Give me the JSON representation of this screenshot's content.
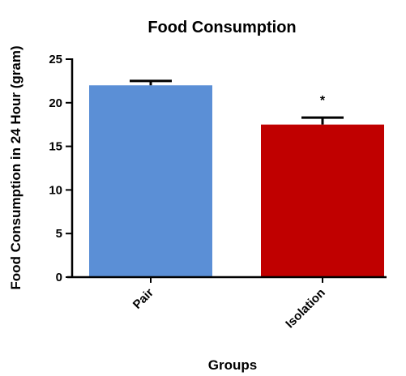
{
  "chart_data": {
    "type": "bar",
    "title": "Food Consumption",
    "xlabel": "Groups",
    "ylabel": "Food Consumption in 24 Hour (gram)",
    "categories": [
      "Pair",
      "Isolation"
    ],
    "values": [
      22.0,
      17.5
    ],
    "errors": [
      0.5,
      0.8
    ],
    "significance": [
      "",
      "*"
    ],
    "ylim": [
      0,
      25
    ],
    "yticks": [
      0,
      5,
      10,
      15,
      20,
      25
    ],
    "colors": [
      "#5b8fd6",
      "#c00000"
    ],
    "grid": false,
    "legend": "none"
  }
}
